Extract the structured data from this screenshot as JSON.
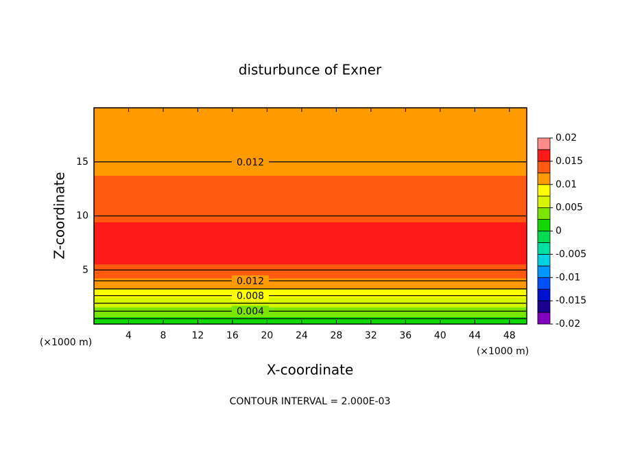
{
  "chart_data": {
    "type": "contour",
    "title": "disturbunce of Exner",
    "xlabel": "X-coordinate",
    "ylabel": "Z-coordinate",
    "x_unit_labels": [
      "(×1000 m)",
      "(×1000 m)"
    ],
    "footer": "CONTOUR INTERVAL = 2.000E-03",
    "xlim": [
      0,
      50
    ],
    "ylim": [
      0,
      20
    ],
    "xticks": [
      4,
      8,
      12,
      16,
      20,
      24,
      28,
      32,
      36,
      40,
      44,
      48
    ],
    "yticks": [
      5,
      10,
      15
    ],
    "z": [
      0,
      0.5,
      1,
      1.5,
      2,
      2.5,
      3,
      3.5,
      4,
      5,
      6,
      9,
      10,
      12,
      15,
      18,
      20
    ],
    "values": [
      0.001,
      0.002,
      0.0035,
      0.0048,
      0.0062,
      0.0076,
      0.0092,
      0.0108,
      0.012,
      0.014,
      0.0158,
      0.0158,
      0.014,
      0.0132,
      0.012,
      0.0108,
      0.0103
    ],
    "contour_levels": [
      0.002,
      0.004,
      0.006,
      0.008,
      0.01,
      0.012,
      0.014
    ],
    "labeled_levels": [
      0.004,
      0.008,
      0.012
    ],
    "clim": [
      -0.02,
      0.02
    ],
    "colorbar_ticks": [
      -0.02,
      -0.015,
      -0.01,
      -0.005,
      0,
      0.005,
      0.01,
      0.015,
      0.02
    ],
    "colors": [
      "#8000c0",
      "#1a0090",
      "#0010d0",
      "#0050ff",
      "#0095ff",
      "#00d2e6",
      "#00e0a0",
      "#00dc50",
      "#10d800",
      "#7ae600",
      "#d8f500",
      "#ffff00",
      "#ff9a00",
      "#ff5a10",
      "#ff1a1a",
      "#ff8a8a"
    ]
  }
}
